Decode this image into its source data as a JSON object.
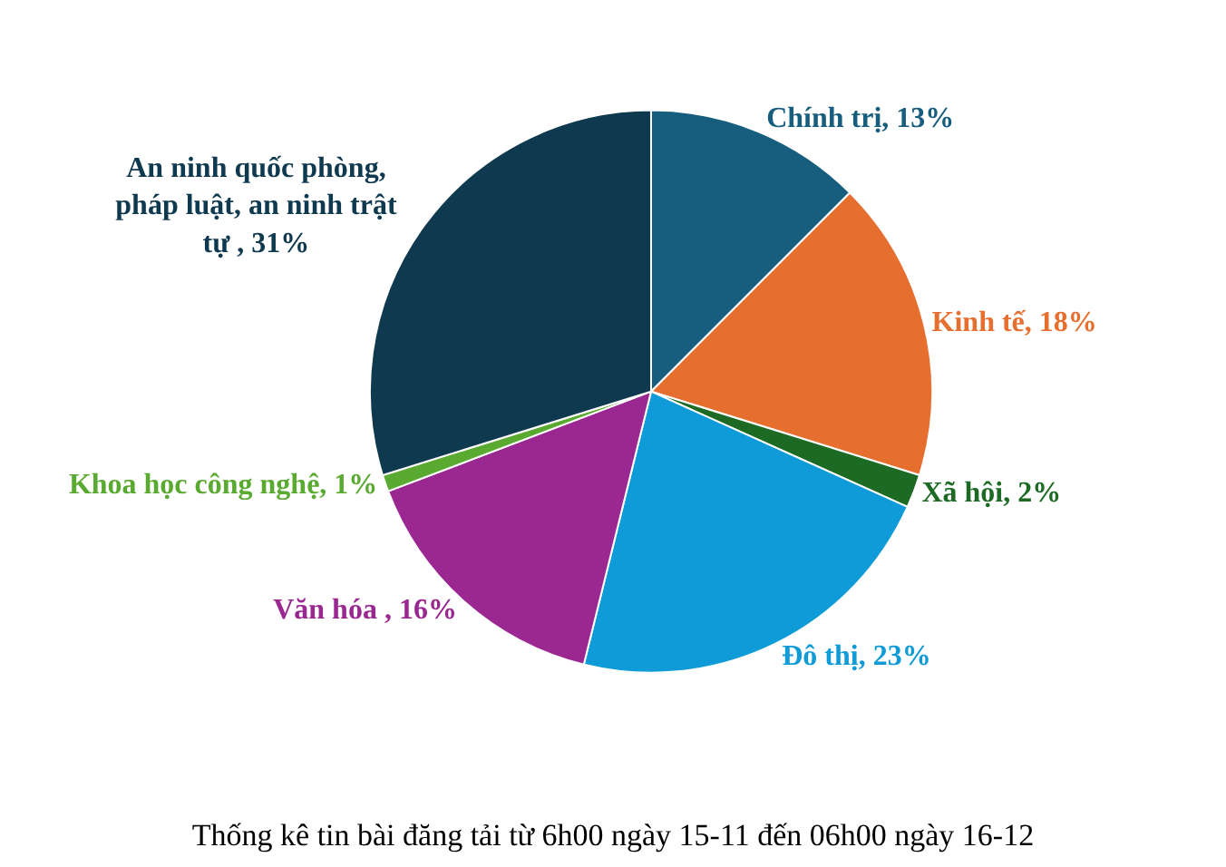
{
  "chart_data": {
    "type": "pie",
    "title": "Thống kê tin bài đăng tải từ 6h00 ngày 15-11 đến 06h00 ngày 16-12",
    "categories": [
      "Chính trị",
      "Kinh tế",
      "Xã hội",
      "Đô thị",
      "Văn hóa ",
      "Khoa học công nghệ",
      "An ninh quốc phòng, pháp luật, an ninh trật tự "
    ],
    "values": [
      13,
      18,
      2,
      23,
      16,
      1,
      31
    ],
    "value_labels": [
      "13%",
      "18%",
      "2%",
      "23%",
      "16%",
      "1%",
      "31%"
    ],
    "colors": [
      "#175e7e",
      "#e66f2f",
      "#1d6a24",
      "#0f9bd7",
      "#9b2890",
      "#5aaa31",
      "#0e394f"
    ]
  }
}
